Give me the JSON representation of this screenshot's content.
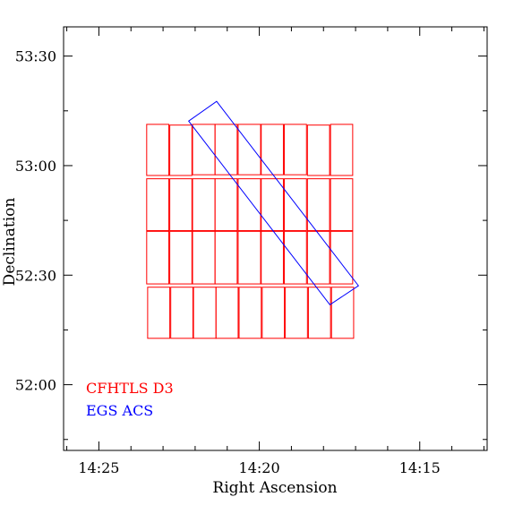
{
  "chart_data": {
    "type": "footprint",
    "xlabel": "Right Ascension",
    "ylabel": "Declination",
    "x_unit": "minutes of RA (h:m)",
    "y_unit": "arcminutes of Dec (d:m)",
    "x_ticks": [
      {
        "value": 865,
        "label": "14:25"
      },
      {
        "value": 860,
        "label": "14:20"
      },
      {
        "value": 855,
        "label": "14:15"
      }
    ],
    "y_ticks": [
      {
        "value": 3210,
        "label": "53:30"
      },
      {
        "value": 3180,
        "label": "53:00"
      },
      {
        "value": 3150,
        "label": "52:30"
      },
      {
        "value": 3120,
        "label": "52:00"
      }
    ],
    "x_range": [
      866.1,
      852.9
    ],
    "y_range": [
      3102,
      3218
    ],
    "legend": [
      {
        "label": "CFHTLS D3",
        "color": "#ff0000"
      },
      {
        "label": "EGS ACS",
        "color": "#0000ff"
      }
    ],
    "series": [
      {
        "name": "CFHTLS D3",
        "color": "#ff0000",
        "rectangles": [
          {
            "x0": 863.51,
            "x1": 862.82,
            "y0": 3191.3,
            "y1": 3177.3
          },
          {
            "x0": 862.79,
            "x1": 862.1,
            "y0": 3191.1,
            "y1": 3177.3
          },
          {
            "x0": 862.08,
            "x1": 861.38,
            "y0": 3191.3,
            "y1": 3177.5
          },
          {
            "x0": 861.38,
            "x1": 860.69,
            "y0": 3191.3,
            "y1": 3177.5
          },
          {
            "x0": 860.66,
            "x1": 859.96,
            "y0": 3191.3,
            "y1": 3177.5
          },
          {
            "x0": 859.94,
            "x1": 859.25,
            "y0": 3191.3,
            "y1": 3177.5
          },
          {
            "x0": 859.22,
            "x1": 858.53,
            "y0": 3191.3,
            "y1": 3177.5
          },
          {
            "x0": 858.5,
            "x1": 857.81,
            "y0": 3191.1,
            "y1": 3177.3
          },
          {
            "x0": 857.78,
            "x1": 857.09,
            "y0": 3191.3,
            "y1": 3177.3
          },
          {
            "x0": 863.51,
            "x1": 862.82,
            "y0": 3176.4,
            "y1": 3162.2
          },
          {
            "x0": 862.79,
            "x1": 862.1,
            "y0": 3176.4,
            "y1": 3162.2
          },
          {
            "x0": 862.08,
            "x1": 861.38,
            "y0": 3176.4,
            "y1": 3162.2
          },
          {
            "x0": 861.38,
            "x1": 860.69,
            "y0": 3176.4,
            "y1": 3162.2
          },
          {
            "x0": 860.66,
            "x1": 859.96,
            "y0": 3176.4,
            "y1": 3162.2
          },
          {
            "x0": 859.94,
            "x1": 859.25,
            "y0": 3176.4,
            "y1": 3162.2
          },
          {
            "x0": 859.22,
            "x1": 858.53,
            "y0": 3176.4,
            "y1": 3162.2
          },
          {
            "x0": 858.5,
            "x1": 857.81,
            "y0": 3176.4,
            "y1": 3162.2
          },
          {
            "x0": 857.78,
            "x1": 857.09,
            "y0": 3176.4,
            "y1": 3162.2
          },
          {
            "x0": 863.51,
            "x1": 862.82,
            "y0": 3162.0,
            "y1": 3147.6
          },
          {
            "x0": 862.79,
            "x1": 862.1,
            "y0": 3162.0,
            "y1": 3147.6
          },
          {
            "x0": 862.08,
            "x1": 861.38,
            "y0": 3162.0,
            "y1": 3147.6
          },
          {
            "x0": 861.38,
            "x1": 860.69,
            "y0": 3162.0,
            "y1": 3147.6
          },
          {
            "x0": 860.66,
            "x1": 859.96,
            "y0": 3162.0,
            "y1": 3147.6
          },
          {
            "x0": 859.94,
            "x1": 859.25,
            "y0": 3162.0,
            "y1": 3147.6
          },
          {
            "x0": 859.22,
            "x1": 858.53,
            "y0": 3162.0,
            "y1": 3147.6
          },
          {
            "x0": 858.5,
            "x1": 857.81,
            "y0": 3162.0,
            "y1": 3147.6
          },
          {
            "x0": 857.78,
            "x1": 857.09,
            "y0": 3162.0,
            "y1": 3147.6
          },
          {
            "x0": 863.48,
            "x1": 862.79,
            "y0": 3146.7,
            "y1": 3132.7
          },
          {
            "x0": 862.76,
            "x1": 862.07,
            "y0": 3146.7,
            "y1": 3132.7
          },
          {
            "x0": 862.05,
            "x1": 861.35,
            "y0": 3146.7,
            "y1": 3132.7
          },
          {
            "x0": 861.35,
            "x1": 860.66,
            "y0": 3146.7,
            "y1": 3132.7
          },
          {
            "x0": 860.63,
            "x1": 859.94,
            "y0": 3146.7,
            "y1": 3132.7
          },
          {
            "x0": 859.91,
            "x1": 859.22,
            "y0": 3146.7,
            "y1": 3132.7
          },
          {
            "x0": 859.19,
            "x1": 858.5,
            "y0": 3146.7,
            "y1": 3132.7
          },
          {
            "x0": 858.47,
            "x1": 857.78,
            "y0": 3146.7,
            "y1": 3132.7
          },
          {
            "x0": 857.75,
            "x1": 857.06,
            "y0": 3146.7,
            "y1": 3132.7
          }
        ]
      },
      {
        "name": "EGS ACS",
        "color": "#0000ff",
        "polygon": [
          {
            "x": 862.2,
            "y": 3192.2
          },
          {
            "x": 861.33,
            "y": 3197.6
          },
          {
            "x": 856.91,
            "y": 3147.1
          },
          {
            "x": 857.8,
            "y": 3141.9
          }
        ]
      }
    ]
  }
}
